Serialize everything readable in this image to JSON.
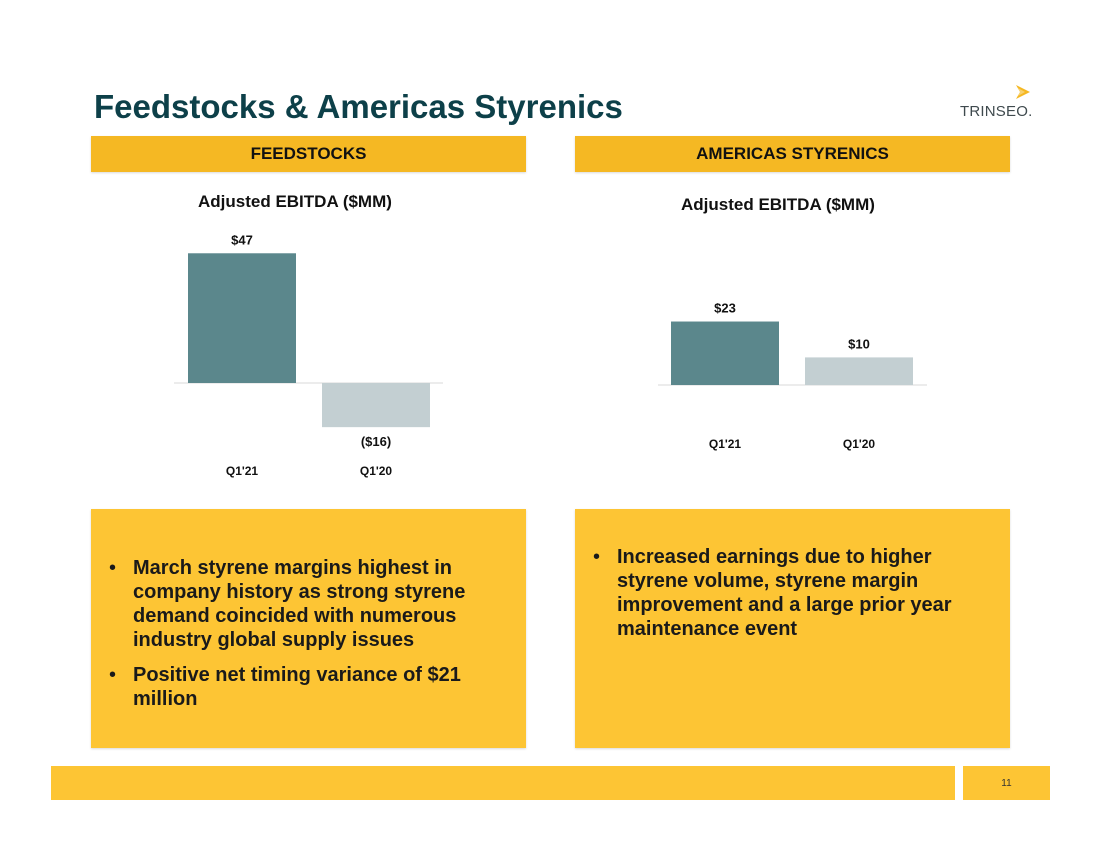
{
  "slide": {
    "title": "Feedstocks & Americas Styrenics",
    "logo_text": "TRINSEO.",
    "page_number": "11"
  },
  "colors": {
    "title": "#0d4049",
    "header_bg": "#f5b823",
    "box_bg": "#fdc534",
    "bar_current": "#5b878c",
    "bar_prior": "#c3cfd2"
  },
  "sections": {
    "left": {
      "header": "FEEDSTOCKS",
      "bullets": [
        "March styrene margins highest in company history as strong styrene demand coincided with numerous industry global supply issues",
        "Positive net timing variance of $21 million"
      ]
    },
    "right": {
      "header": "AMERICAS STYRENICS",
      "bullets": [
        "Increased earnings due to higher styrene volume, styrene margin improvement and a large prior year maintenance event"
      ]
    }
  },
  "chart_data": [
    {
      "type": "bar",
      "title": "Adjusted EBITDA ($MM)",
      "categories": [
        "Q1'21",
        "Q1'20"
      ],
      "values": [
        47,
        -16
      ],
      "value_labels": [
        "$47",
        "($16)"
      ]
    },
    {
      "type": "bar",
      "title": "Adjusted EBITDA ($MM)",
      "categories": [
        "Q1'21",
        "Q1'20"
      ],
      "values": [
        23,
        10
      ],
      "value_labels": [
        "$23",
        "$10"
      ]
    }
  ]
}
